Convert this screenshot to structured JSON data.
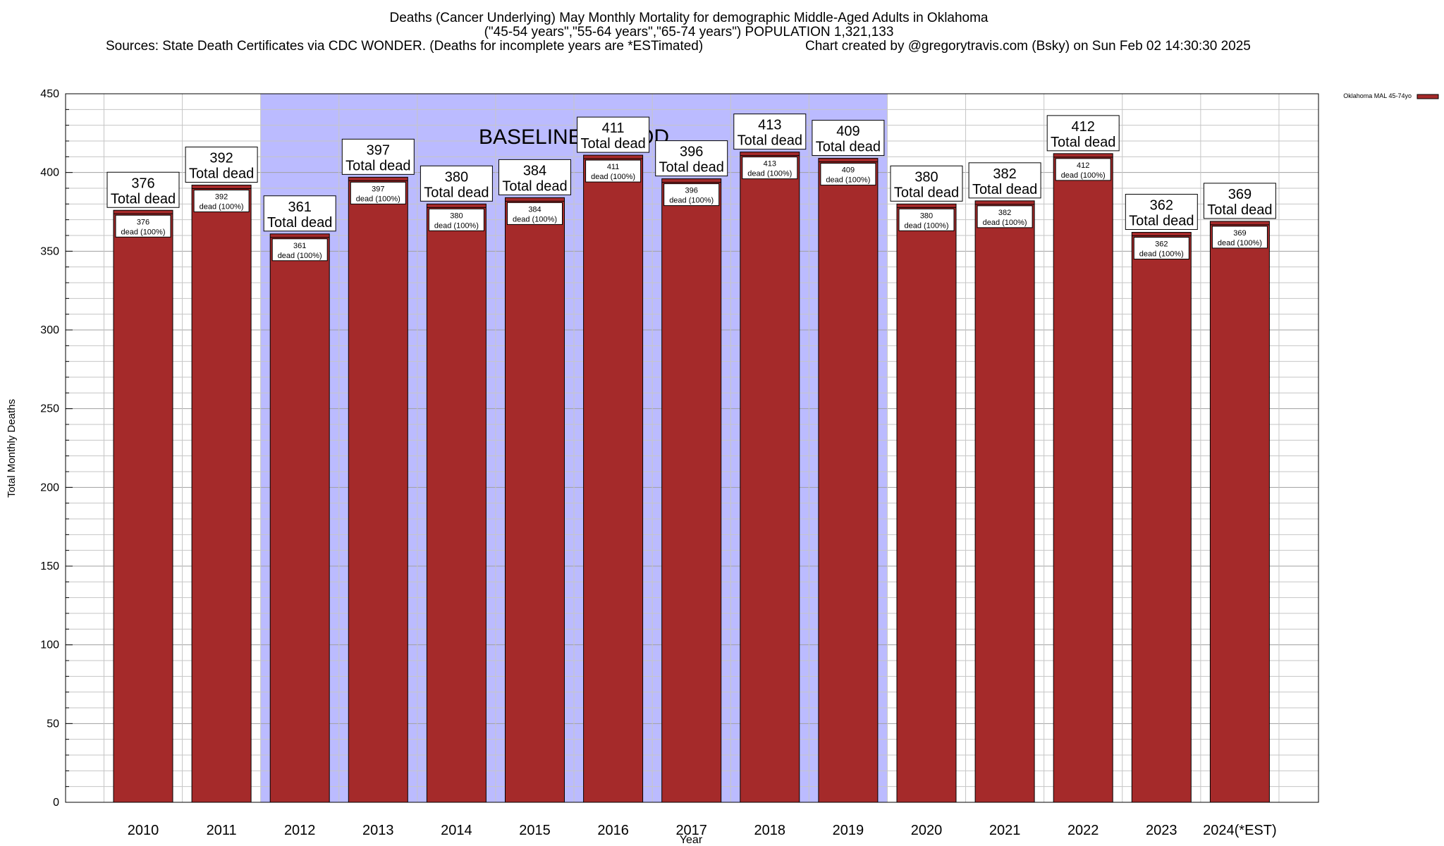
{
  "chart_data": {
    "type": "bar",
    "title_lines": [
      "Deaths (Cancer Underlying) May Monthly Mortality for demographic Middle-Aged Adults in Oklahoma",
      "(\"45-54 years\",\"55-64 years\",\"65-74 years\") POPULATION 1,321,133"
    ],
    "sources": "Sources: State Death Certificates via CDC WONDER. (Deaths for incomplete years are *ESTimated)",
    "credit": "Chart created by @gregorytravis.com (Bsky) on Sun Feb 02 14:30:30 2025",
    "xlabel": "Year",
    "ylabel": "Total Monthly Deaths",
    "ylim": [
      0,
      450
    ],
    "y_ticks": [
      0,
      50,
      100,
      150,
      200,
      250,
      300,
      350,
      400,
      450
    ],
    "y_minor_step": 10,
    "categories": [
      "2010",
      "2011",
      "2012",
      "2013",
      "2014",
      "2015",
      "2016",
      "2017",
      "2018",
      "2019",
      "2020",
      "2021",
      "2022",
      "2023",
      "2024(*EST)"
    ],
    "series": [
      {
        "name": "Oklahoma MAL 45-74yo",
        "color": "#a52a2a",
        "values": [
          376,
          392,
          361,
          397,
          380,
          384,
          411,
          396,
          413,
          409,
          380,
          382,
          412,
          362,
          369
        ]
      }
    ],
    "total_label_suffix": "Total dead",
    "inner_label_suffix": "dead (100%)",
    "baseline": {
      "label": "BASELINE PERIOD",
      "from": "2012",
      "to": "2019",
      "color": "#bbbbff"
    },
    "legend_position": "top-right",
    "grid": true
  }
}
